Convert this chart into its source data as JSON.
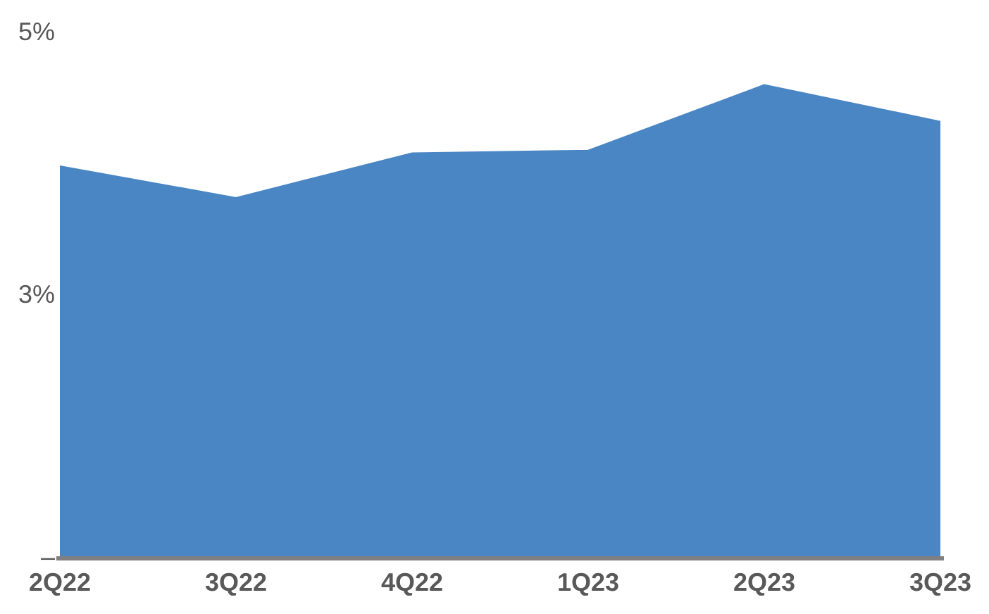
{
  "chart_data": {
    "type": "area",
    "categories": [
      "2Q22",
      "3Q22",
      "4Q22",
      "1Q23",
      "2Q23",
      "3Q23"
    ],
    "series": [
      {
        "color": "#4a86c4",
        "values": [
          3.97,
          3.73,
          4.07,
          4.09,
          4.59,
          4.31
        ]
      }
    ],
    "ylim": [
      1,
      5
    ],
    "yticks": [
      {
        "value": 1,
        "label": "–"
      },
      {
        "value": 3,
        "label": "3%"
      },
      {
        "value": 5,
        "label": "5%"
      }
    ],
    "line_style": "solid"
  }
}
